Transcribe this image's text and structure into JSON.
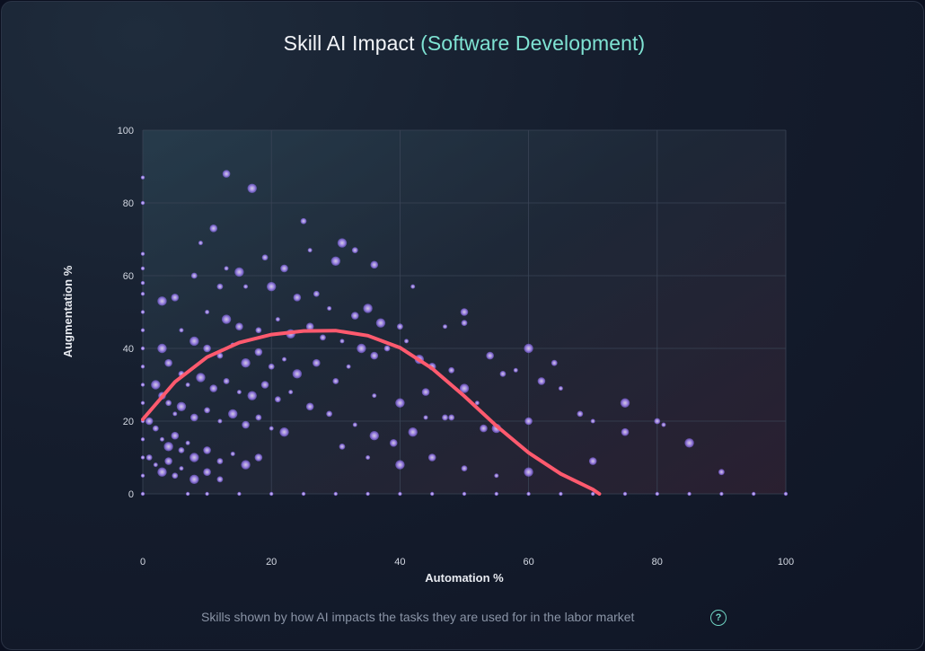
{
  "title": {
    "main": "Skill AI Impact",
    "highlight": "(Software Development)"
  },
  "caption": "Skills shown by how AI impacts the tasks they are used for in the labor market",
  "help_symbol": "?",
  "colors": {
    "highlight": "#7fe3d3",
    "points": "#b394ff",
    "trend": "#ff5a6e",
    "grid": "#3a4456"
  },
  "chart_data": {
    "type": "scatter",
    "xlabel": "Automation %",
    "ylabel": "Augmentation %",
    "xlim": [
      0,
      100
    ],
    "ylim": [
      0,
      100
    ],
    "x_ticks": [
      0,
      20,
      40,
      60,
      80,
      100
    ],
    "y_ticks": [
      0,
      20,
      40,
      60,
      80,
      100
    ],
    "grid": true,
    "points": [
      [
        0,
        87
      ],
      [
        0,
        80
      ],
      [
        0,
        66
      ],
      [
        0,
        62
      ],
      [
        0,
        58
      ],
      [
        0,
        55
      ],
      [
        0,
        50
      ],
      [
        0,
        45
      ],
      [
        0,
        40
      ],
      [
        0,
        35
      ],
      [
        0,
        30
      ],
      [
        0,
        25
      ],
      [
        0,
        20
      ],
      [
        0,
        15
      ],
      [
        0,
        10
      ],
      [
        0,
        5
      ],
      [
        0,
        0
      ],
      [
        7,
        0
      ],
      [
        10,
        0
      ],
      [
        15,
        0
      ],
      [
        20,
        0
      ],
      [
        25,
        0
      ],
      [
        30,
        0
      ],
      [
        35,
        0
      ],
      [
        40,
        0
      ],
      [
        45,
        0
      ],
      [
        50,
        0
      ],
      [
        55,
        0
      ],
      [
        60,
        0
      ],
      [
        65,
        0
      ],
      [
        70,
        0
      ],
      [
        75,
        0
      ],
      [
        80,
        0
      ],
      [
        85,
        0
      ],
      [
        90,
        0
      ],
      [
        95,
        0
      ],
      [
        100,
        0
      ],
      [
        17,
        84
      ],
      [
        13,
        88
      ],
      [
        25,
        75
      ],
      [
        9,
        69
      ],
      [
        31,
        69
      ],
      [
        11,
        73
      ],
      [
        19,
        65
      ],
      [
        26,
        67
      ],
      [
        30,
        64
      ],
      [
        36,
        63
      ],
      [
        33,
        67
      ],
      [
        13,
        62
      ],
      [
        15,
        61
      ],
      [
        22,
        62
      ],
      [
        8,
        60
      ],
      [
        42,
        57
      ],
      [
        3,
        53
      ],
      [
        5,
        54
      ],
      [
        12,
        57
      ],
      [
        16,
        57
      ],
      [
        20,
        57
      ],
      [
        24,
        54
      ],
      [
        27,
        55
      ],
      [
        29,
        51
      ],
      [
        35,
        51
      ],
      [
        50,
        50
      ],
      [
        50,
        47
      ],
      [
        47,
        46
      ],
      [
        37,
        47
      ],
      [
        33,
        49
      ],
      [
        40,
        46
      ],
      [
        10,
        50
      ],
      [
        13,
        48
      ],
      [
        15,
        46
      ],
      [
        18,
        45
      ],
      [
        21,
        48
      ],
      [
        23,
        44
      ],
      [
        26,
        46
      ],
      [
        28,
        43
      ],
      [
        31,
        42
      ],
      [
        34,
        40
      ],
      [
        36,
        38
      ],
      [
        38,
        40
      ],
      [
        41,
        42
      ],
      [
        43,
        37
      ],
      [
        45,
        35
      ],
      [
        48,
        34
      ],
      [
        6,
        45
      ],
      [
        8,
        42
      ],
      [
        10,
        40
      ],
      [
        12,
        38
      ],
      [
        14,
        41
      ],
      [
        16,
        36
      ],
      [
        18,
        39
      ],
      [
        20,
        35
      ],
      [
        22,
        37
      ],
      [
        24,
        33
      ],
      [
        27,
        36
      ],
      [
        30,
        31
      ],
      [
        32,
        35
      ],
      [
        3,
        40
      ],
      [
        4,
        36
      ],
      [
        6,
        33
      ],
      [
        7,
        30
      ],
      [
        9,
        32
      ],
      [
        11,
        29
      ],
      [
        13,
        31
      ],
      [
        15,
        28
      ],
      [
        17,
        27
      ],
      [
        19,
        30
      ],
      [
        21,
        26
      ],
      [
        23,
        28
      ],
      [
        2,
        30
      ],
      [
        3,
        27
      ],
      [
        4,
        25
      ],
      [
        5,
        22
      ],
      [
        6,
        24
      ],
      [
        8,
        21
      ],
      [
        10,
        23
      ],
      [
        12,
        20
      ],
      [
        14,
        22
      ],
      [
        16,
        19
      ],
      [
        18,
        21
      ],
      [
        20,
        18
      ],
      [
        22,
        17
      ],
      [
        1,
        20
      ],
      [
        2,
        18
      ],
      [
        3,
        15
      ],
      [
        4,
        13
      ],
      [
        5,
        16
      ],
      [
        6,
        12
      ],
      [
        7,
        14
      ],
      [
        8,
        10
      ],
      [
        10,
        12
      ],
      [
        12,
        9
      ],
      [
        14,
        11
      ],
      [
        16,
        8
      ],
      [
        18,
        10
      ],
      [
        1,
        10
      ],
      [
        2,
        8
      ],
      [
        3,
        6
      ],
      [
        4,
        9
      ],
      [
        5,
        5
      ],
      [
        6,
        7
      ],
      [
        8,
        4
      ],
      [
        10,
        6
      ],
      [
        12,
        4
      ],
      [
        36,
        27
      ],
      [
        40,
        25
      ],
      [
        44,
        28
      ],
      [
        48,
        21
      ],
      [
        52,
        25
      ],
      [
        50,
        29
      ],
      [
        54,
        38
      ],
      [
        56,
        33
      ],
      [
        58,
        34
      ],
      [
        60,
        40
      ],
      [
        62,
        31
      ],
      [
        64,
        36
      ],
      [
        65,
        29
      ],
      [
        55,
        18
      ],
      [
        60,
        20
      ],
      [
        68,
        22
      ],
      [
        70,
        20
      ],
      [
        75,
        25
      ],
      [
        75,
        17
      ],
      [
        80,
        20
      ],
      [
        81,
        19
      ],
      [
        85,
        14
      ],
      [
        53,
        18
      ],
      [
        47,
        21
      ],
      [
        44,
        21
      ],
      [
        42,
        17
      ],
      [
        26,
        24
      ],
      [
        29,
        22
      ],
      [
        33,
        19
      ],
      [
        36,
        16
      ],
      [
        39,
        14
      ],
      [
        31,
        13
      ],
      [
        35,
        10
      ],
      [
        40,
        8
      ],
      [
        45,
        10
      ],
      [
        50,
        7
      ],
      [
        55,
        5
      ],
      [
        60,
        6
      ],
      [
        70,
        9
      ],
      [
        90,
        6
      ]
    ],
    "trend": [
      [
        0,
        20.5
      ],
      [
        5,
        30.8
      ],
      [
        10,
        37.6
      ],
      [
        15,
        41.6
      ],
      [
        20,
        43.8
      ],
      [
        25,
        44.8
      ],
      [
        30,
        44.9
      ],
      [
        35,
        43.5
      ],
      [
        40,
        40.2
      ],
      [
        45,
        34.5
      ],
      [
        50,
        26.9
      ],
      [
        55,
        18.7
      ],
      [
        60,
        11.3
      ],
      [
        65,
        5.5
      ],
      [
        70,
        1.2
      ],
      [
        71,
        0
      ]
    ]
  }
}
